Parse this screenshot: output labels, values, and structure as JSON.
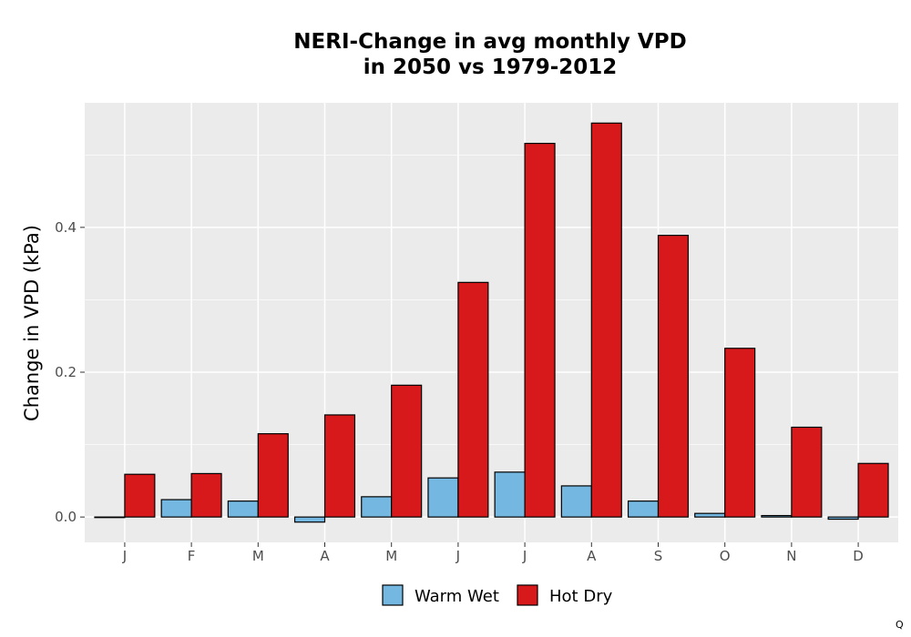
{
  "chart_data": {
    "type": "bar",
    "title_lines": [
      "NERI-Change in avg monthly VPD",
      "in 2050 vs 1979-2012"
    ],
    "ylabel": "Change in VPD (kPa)",
    "xlabel": "",
    "categories": [
      "J",
      "F",
      "M",
      "A",
      "M",
      "J",
      "J",
      "A",
      "S",
      "O",
      "N",
      "D"
    ],
    "series": [
      {
        "name": "Warm Wet",
        "color": "#74b8e2",
        "values": [
          0.0,
          0.024,
          0.022,
          -0.007,
          0.028,
          0.054,
          0.062,
          0.043,
          0.022,
          0.005,
          0.002,
          -0.003
        ]
      },
      {
        "name": "Hot Dry",
        "color": "#d7191c",
        "values": [
          0.059,
          0.06,
          0.115,
          0.141,
          0.182,
          0.324,
          0.516,
          0.544,
          0.389,
          0.233,
          0.124,
          0.074
        ]
      }
    ],
    "ylim": [
      -0.035,
      0.572
    ],
    "yticks": [
      0.0,
      0.2,
      0.4
    ],
    "ytick_labels": [
      "0.0",
      "0.2",
      "0.4"
    ],
    "grid": true,
    "legend_position": "bottom"
  },
  "corner_mark": "Q"
}
